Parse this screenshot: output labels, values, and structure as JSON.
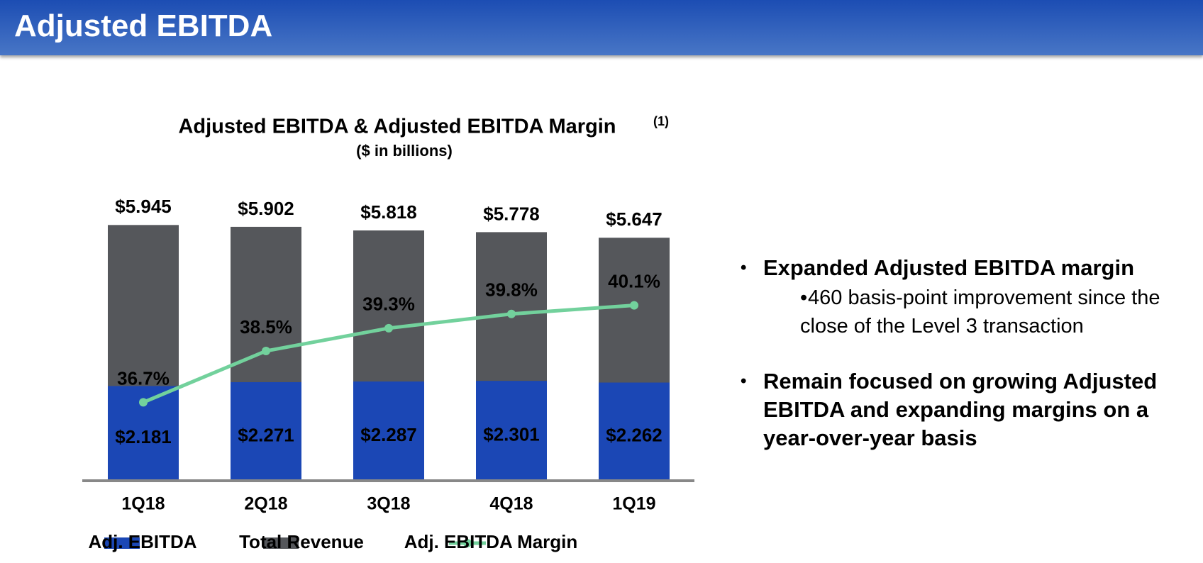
{
  "header": {
    "title": "Adjusted EBITDA"
  },
  "chart_data": {
    "type": "bar",
    "title": "Adjusted EBITDA & Adjusted EBITDA Margin",
    "title_note": "(1)",
    "subtitle": "($ in billions)",
    "categories": [
      "1Q18",
      "2Q18",
      "3Q18",
      "4Q18",
      "1Q19"
    ],
    "ylim": [
      0,
      6
    ],
    "y2lim": [
      34,
      43
    ],
    "series": [
      {
        "name": "Adj. EBITDA",
        "color": "#1b47b5",
        "values": [
          2.181,
          2.271,
          2.287,
          2.301,
          2.262
        ],
        "value_labels": [
          "$2.181",
          "$2.271",
          "$2.287",
          "$2.301",
          "$2.262"
        ]
      },
      {
        "name": "Total Revenue",
        "color": "#55575b",
        "values": [
          5.945,
          5.902,
          5.818,
          5.778,
          5.647
        ],
        "value_labels": [
          "$5.945",
          "$5.902",
          "$5.818",
          "$5.778",
          "$5.647"
        ]
      },
      {
        "name": "Adj. EBITDA Margin",
        "type": "line",
        "axis": "y2",
        "color": "#72d19c",
        "values": [
          36.7,
          38.5,
          39.3,
          39.8,
          40.1
        ],
        "value_labels": [
          "36.7%",
          "38.5%",
          "39.3%",
          "39.8%",
          "40.1%"
        ]
      }
    ]
  },
  "bullets": [
    {
      "text": "Expanded Adjusted EBITDA margin",
      "sub": [
        "460 basis-point improvement since the close of the Level 3 transaction"
      ]
    },
    {
      "text": "Remain focused on growing Adjusted EBITDA and expanding margins on a year-over-year basis",
      "sub": []
    }
  ]
}
